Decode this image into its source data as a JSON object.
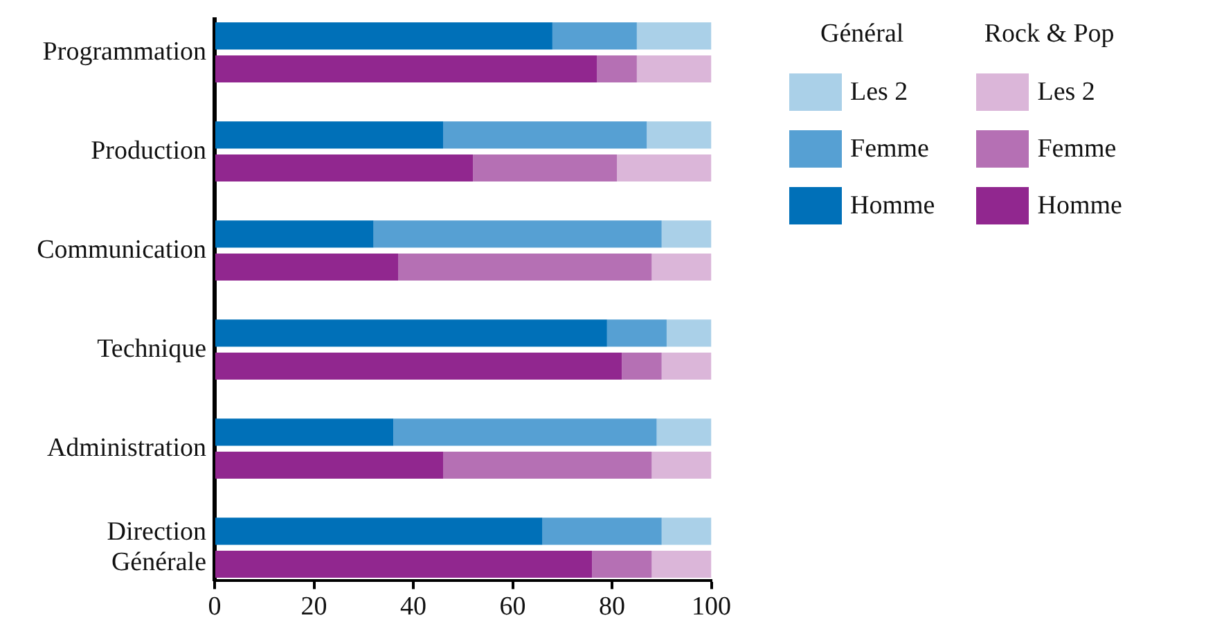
{
  "chart_data": {
    "type": "bar",
    "orientation": "horizontal",
    "stacked": true,
    "grid": false,
    "legend": "right",
    "categories": [
      "Programmation",
      null,
      null,
      "Production",
      null,
      null,
      "Communication",
      null,
      null,
      "Technique",
      null,
      null,
      "Administration",
      null,
      null,
      "Direction Générale",
      null
    ],
    "xlim": [
      0,
      100
    ],
    "xticks": [
      0,
      20,
      40,
      60,
      80,
      100
    ],
    "annotations": [
      "Général",
      "Rock & Pop"
    ],
    "series": [
      {
        "name": "Homme",
        "color": "#0070b8",
        "values": [
          68,
          null,
          null,
          46,
          null,
          null,
          32,
          null,
          null,
          79,
          null,
          null,
          36,
          null,
          null,
          66,
          null
        ]
      },
      {
        "name": "Femme",
        "color": "#56a0d3",
        "values": [
          17,
          null,
          null,
          41,
          null,
          null,
          58,
          null,
          null,
          12,
          null,
          null,
          53,
          null,
          null,
          24,
          null
        ]
      },
      {
        "name": "Les 2",
        "color": "#aad0e8",
        "values": [
          15,
          null,
          null,
          13,
          null,
          null,
          10,
          null,
          null,
          9,
          null,
          null,
          11,
          null,
          null,
          10,
          null
        ]
      },
      {
        "name": "Homme",
        "color": "#91278f",
        "values": [
          null,
          77,
          null,
          null,
          52,
          null,
          null,
          37,
          null,
          null,
          82,
          null,
          null,
          46,
          null,
          null,
          76
        ]
      },
      {
        "name": "Femme",
        "color": "#b570b4",
        "values": [
          null,
          8,
          null,
          null,
          29,
          null,
          null,
          51,
          null,
          null,
          8,
          null,
          null,
          42,
          null,
          null,
          12
        ]
      },
      {
        "name": "Les 2",
        "color": "#dbb6d9",
        "values": [
          null,
          15,
          null,
          null,
          19,
          null,
          null,
          12,
          null,
          null,
          10,
          null,
          null,
          12,
          null,
          null,
          12
        ]
      }
    ]
  }
}
